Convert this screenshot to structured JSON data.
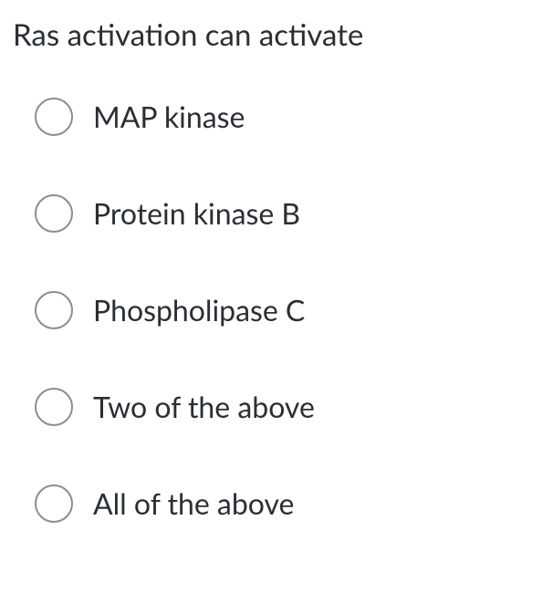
{
  "question": {
    "prompt": "Ras activation can activate",
    "options": [
      {
        "label": "MAP kinase"
      },
      {
        "label": "Protein kinase B"
      },
      {
        "label": "Phospholipase C"
      },
      {
        "label": "Two of the above"
      },
      {
        "label": "All of the above"
      }
    ]
  },
  "colors": {
    "text": "#2b2e33",
    "radio_border": "#8a8d91",
    "background": "#ffffff"
  }
}
